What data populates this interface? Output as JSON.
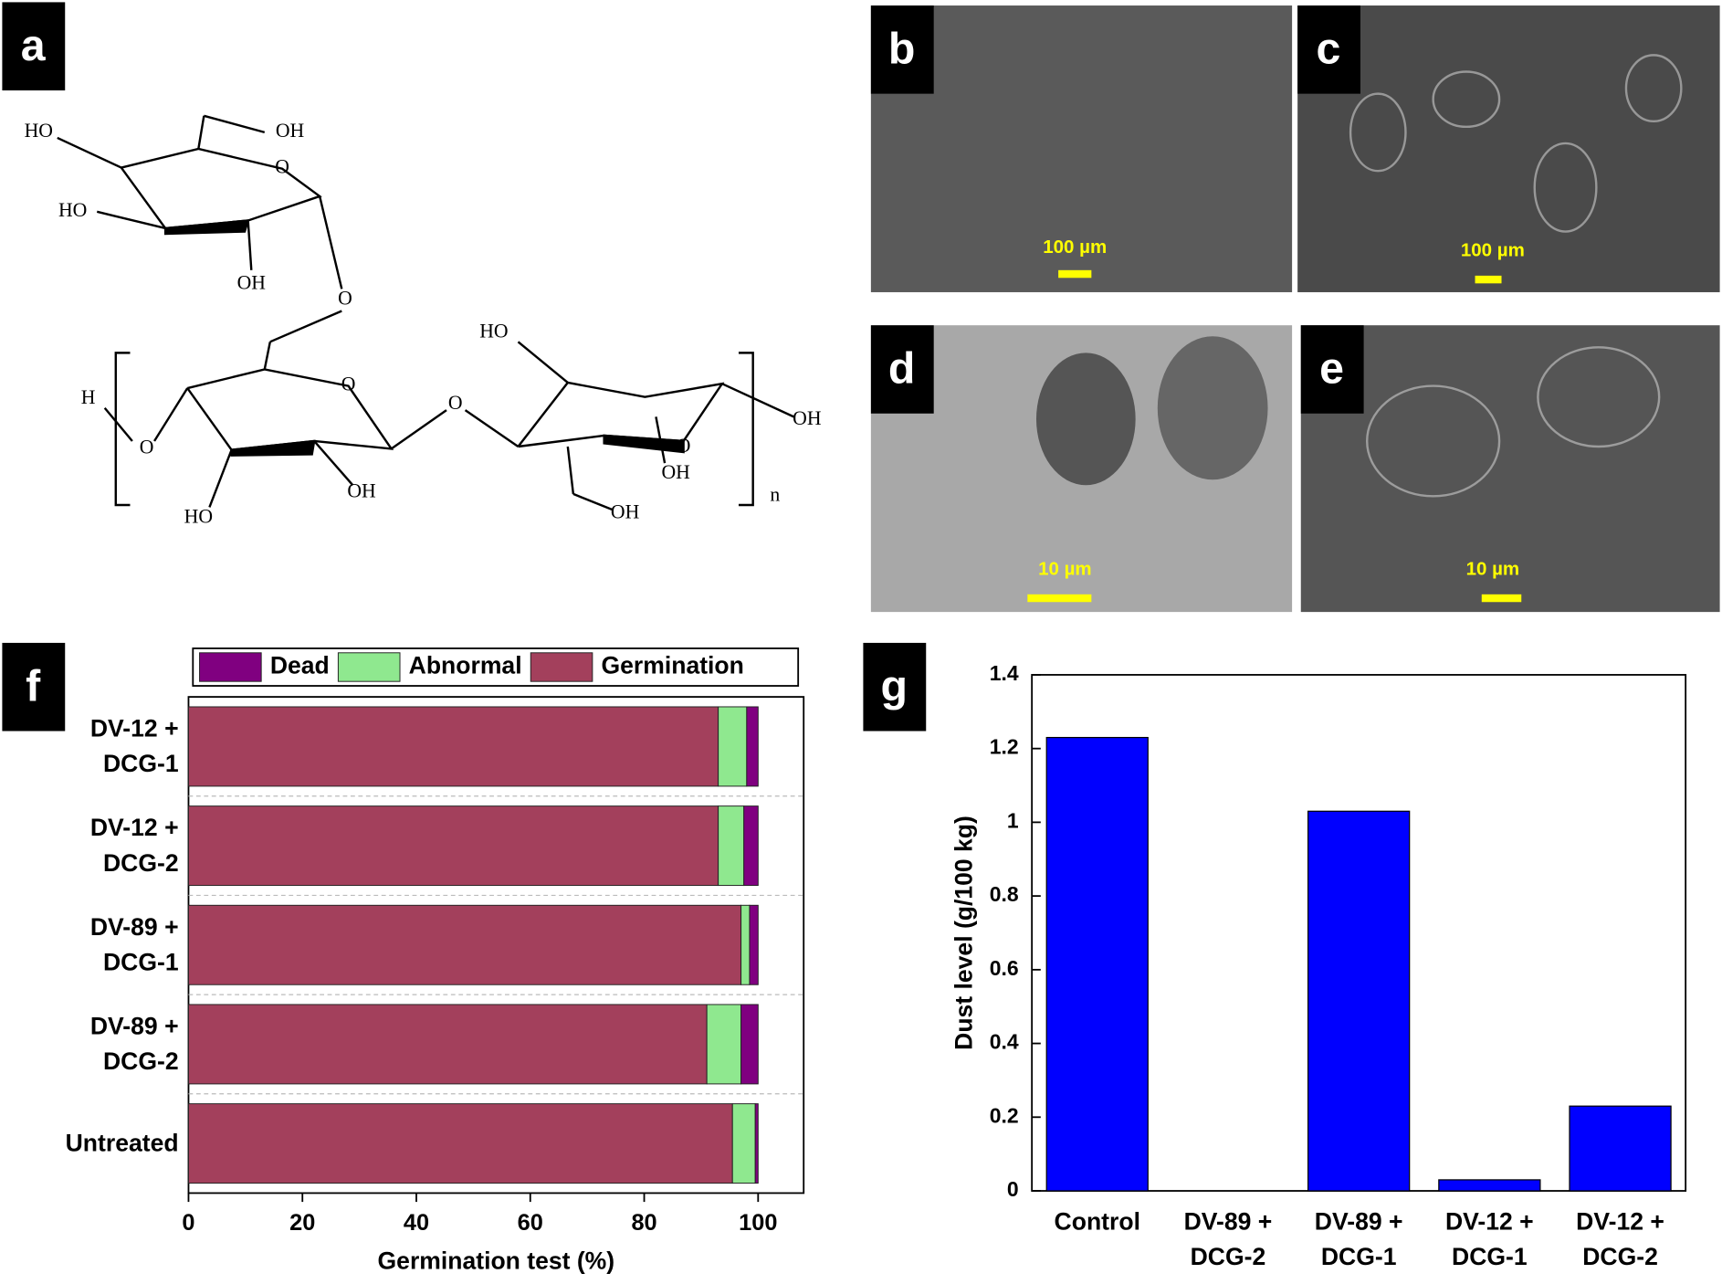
{
  "panel_labels": [
    "a",
    "b",
    "c",
    "d",
    "e",
    "f",
    "g"
  ],
  "structure_labels": [
    "HO",
    "OH",
    "O",
    "HO",
    "OH",
    "O",
    "H",
    "O",
    "O",
    "O",
    "HO",
    "OH",
    "O",
    "OH",
    "OH",
    "HO",
    "OH",
    "n"
  ],
  "scale_bars": [
    "100 µm",
    "100 µm",
    "10 µm",
    "10 µm"
  ],
  "chart_data": [
    {
      "type": "stacked-barh",
      "categories": [
        "DV-12 + DCG-1",
        "DV-12 + DCG-2",
        "DV-89 + DCG-1",
        "DV-89 + DCG-2",
        "Untreated"
      ],
      "series": [
        {
          "name": "Dead",
          "color": "#800080",
          "values": [
            2,
            2.5,
            1.5,
            3,
            0.5
          ]
        },
        {
          "name": "Abnormal",
          "color": "#8fe88f",
          "values": [
            5,
            4.5,
            1.5,
            6,
            4
          ]
        },
        {
          "name": "Germination",
          "color": "#a3405c",
          "values": [
            93,
            93,
            97,
            91,
            95.5
          ]
        }
      ],
      "stack_order": [
        2,
        1,
        0
      ],
      "xlabel": "Germination test (%)",
      "xlim": [
        0,
        108
      ],
      "xticks": [
        0,
        20,
        40,
        60,
        80,
        100
      ],
      "legend": "top"
    },
    {
      "type": "bar",
      "categories": [
        "Control",
        "DV-89 + DCG-2",
        "DV-89 + DCG-1",
        "DV-12 + DCG-1",
        "DV-12 + DCG-2"
      ],
      "values": [
        1.23,
        0,
        1.03,
        0.03,
        0.23
      ],
      "color": "#0000ff",
      "ylabel": "Dust level (g/100 kg)",
      "ylim": [
        0,
        1.4
      ],
      "yticks": [
        0,
        0.2,
        0.4,
        0.6,
        0.8,
        1,
        1.2,
        1.4
      ]
    }
  ]
}
